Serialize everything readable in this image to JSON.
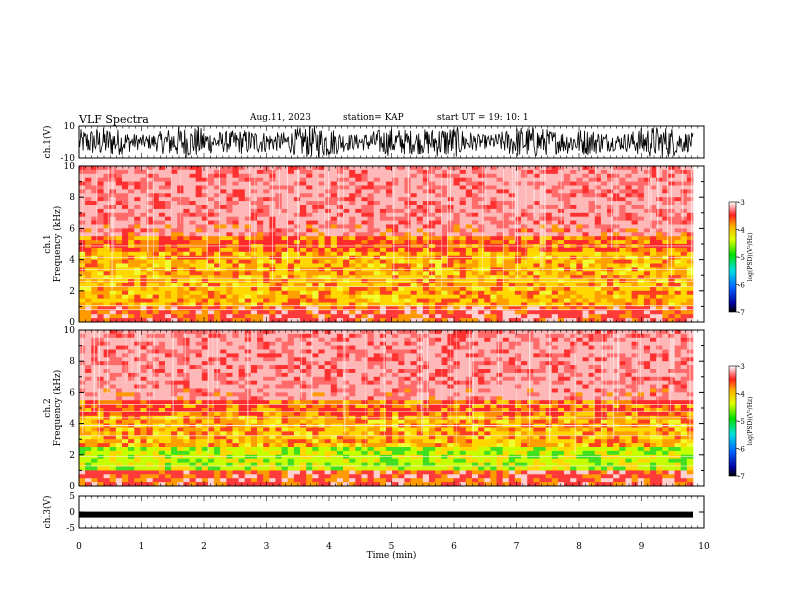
{
  "header": {
    "title": "VLF Spectra",
    "date": "Aug.11, 2023",
    "station": "station= KAP",
    "start": "start  UT =   19: 10: 1"
  },
  "chart_data": [
    {
      "type": "line",
      "name": "ch1-waveform",
      "ylabel": "ch.1(V)",
      "ylim": [
        -10,
        10
      ],
      "yticks": [
        10,
        -10
      ],
      "xlim": [
        0,
        10
      ]
    },
    {
      "type": "heatmap",
      "name": "ch1-spectrogram",
      "ylabel_top": "ch.1",
      "ylabel": "Frequency (kHz)",
      "ylim": [
        0,
        10
      ],
      "yticks": [
        0,
        2,
        4,
        6,
        8,
        10
      ],
      "xlim": [
        0,
        10
      ],
      "colorbar": {
        "label": "log(PSD)(V²/Hz)",
        "min": -7,
        "max": -3,
        "ticks": [
          -3,
          -4,
          -5,
          -6,
          -7
        ]
      }
    },
    {
      "type": "heatmap",
      "name": "ch2-spectrogram",
      "ylabel_top": "ch.2",
      "ylabel": "Frequency (kHz)",
      "ylim": [
        0,
        10
      ],
      "yticks": [
        0,
        2,
        4,
        6,
        8,
        10
      ],
      "xlim": [
        0,
        10
      ],
      "colorbar": {
        "label": "log(PSD)(V²/Hz)",
        "min": -7,
        "max": -3,
        "ticks": [
          -3,
          -4,
          -5,
          -6,
          -7
        ]
      }
    },
    {
      "type": "line",
      "name": "ch3-waveform",
      "ylabel": "ch.3(V)",
      "ylim": [
        -5,
        5
      ],
      "yticks": [
        5,
        0,
        -5
      ],
      "xlabel": "Time (min)",
      "xlim": [
        0,
        10
      ],
      "xticks": [
        0,
        1,
        2,
        3,
        4,
        5,
        6,
        7,
        8,
        9,
        10
      ]
    }
  ],
  "colors": {
    "spectrogram_low": "#ffffff",
    "spectrogram_mid": "#ff2020",
    "spectrogram_high": "#ffff00",
    "spectrogram_peak": "#22e022",
    "waveform": "#000000"
  }
}
